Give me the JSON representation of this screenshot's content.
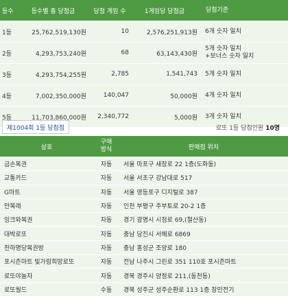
{
  "prize_table": {
    "headers": {
      "rank": "등수",
      "total": "등수별 총 당첨금",
      "winners": "당첨 게임 수",
      "per_game": "1게임당 당첨금",
      "criteria": "당첨기준"
    },
    "rows": [
      {
        "rank": "1등",
        "total": "25,762,519,130원",
        "winners": "10",
        "per_game": "2,576,251,913원",
        "criteria_1": "6개 숫자 일치",
        "criteria_2": ""
      },
      {
        "rank": "2등",
        "total": "4,293,753,240원",
        "winners": "68",
        "per_game": "63,143,430원",
        "criteria_1": "5개 숫자 일치",
        "criteria_2": "+보너스 숫자 일치"
      },
      {
        "rank": "3등",
        "total": "4,293,754,255원",
        "winners": "2,785",
        "per_game": "1,541,743",
        "criteria_1": "5개 숫자 일치",
        "criteria_2": ""
      },
      {
        "rank": "4등",
        "total": "7,002,350,000원",
        "winners": "140,047",
        "per_game": "50,000원",
        "criteria_1": "4개 숫자 일치",
        "criteria_2": ""
      },
      {
        "rank": "5등",
        "total": "11,703,860,000원",
        "winners": "2,340,772",
        "per_game": "5,000원",
        "criteria_1": "3개 숫자 일치",
        "criteria_2": ""
      }
    ]
  },
  "round_label": "제1004회 1등 당첨점",
  "summary": {
    "label": "로또 1등 당첨인원",
    "count": "10명"
  },
  "store_table": {
    "headers": {
      "name": "상호",
      "type_1": "구매",
      "type_2": "방식",
      "location": "판매점 위치"
    },
    "rows": [
      {
        "name": "금손복권",
        "type": "자동",
        "location": "서울 마포구 새창로 22 1층(도화동)"
      },
      {
        "name": "교통카드",
        "type": "자동",
        "location": "서울 서초구 강남대로 517"
      },
      {
        "name": "G마트",
        "type": "자동",
        "location": "서울 영등포구 디지털로 387"
      },
      {
        "name": "만복래",
        "type": "자동",
        "location": "인천 부평구 주부토로 20-2 1층"
      },
      {
        "name": "잉크와복권",
        "type": "자동",
        "location": "경기 광명시 시청로 69,(철산동)"
      },
      {
        "name": "대박로또",
        "type": "자동",
        "location": "충남 당진시 서해로 6869"
      },
      {
        "name": "천하명당복권방",
        "type": "자동",
        "location": "충남 홍성군 조양로 180"
      },
      {
        "name": "포시즌마트 빛가람희망로또",
        "type": "자동",
        "location": "전남 나주시 그린로 351 110호 포시즌마트"
      },
      {
        "name": "로또야놀자",
        "type": "자동",
        "location": "경북 경주시 양정로 211,(동천동)"
      },
      {
        "name": "로또월드",
        "type": "수동",
        "location": "경북 성주군 성주순환로 113 1층 창민전기"
      }
    ]
  },
  "colors": {
    "header_green": "#4e9b44",
    "row_bg": "#eef6ec",
    "round_text": "#1b4f9c"
  }
}
